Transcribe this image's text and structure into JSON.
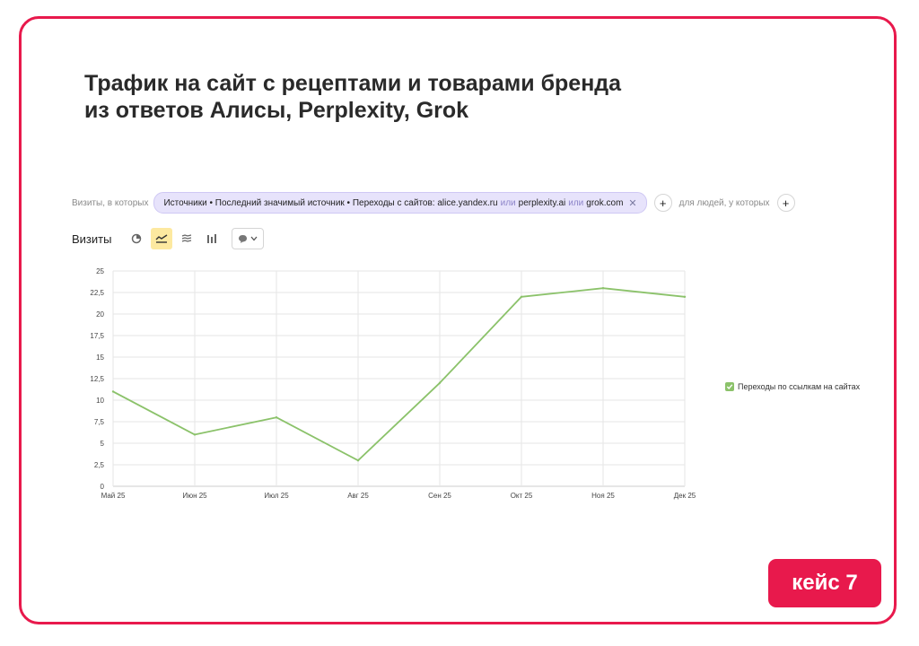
{
  "page": {
    "title_line1": "Трафик на сайт с рецептами и товарами бренда",
    "title_line2": "из ответов Алисы, Perplexity, Grok",
    "badge": "кейс 7",
    "accent_color": "#e8194c"
  },
  "filters": {
    "visits_label": "Визиты, в которых",
    "chip_prefix": "Источники • Последний значимый источник • Переходы с сайтов:",
    "sites": [
      "alice.yandex.ru",
      "perplexity.ai",
      "grok.com"
    ],
    "or_word": "или",
    "people_label": "для людей, у которых",
    "close_icon": "close-icon",
    "add_icon": "plus-icon"
  },
  "toolbar": {
    "label": "Визиты",
    "buttons": [
      "pie-chart-icon",
      "line-chart-icon",
      "area-chart-icon",
      "bar-chart-icon"
    ],
    "active": "line-chart-icon",
    "dropdown_icon": "comment-icon"
  },
  "chart_data": {
    "type": "line",
    "x": [
      "Май 25",
      "Июн 25",
      "Июл 25",
      "Авг 25",
      "Сен 25",
      "Окт 25",
      "Ноя 25",
      "Дек 25"
    ],
    "series": [
      {
        "name": "Переходы по ссылкам на сайтах",
        "values": [
          11,
          6,
          8,
          3,
          12,
          22,
          23,
          22
        ],
        "color": "#8bc26a"
      }
    ],
    "ylim": [
      0,
      25
    ],
    "yticks": [
      "0",
      "2,5",
      "5",
      "7,5",
      "10",
      "12,5",
      "15",
      "17,5",
      "20",
      "22,5",
      "25"
    ],
    "grid": true,
    "legend_position": "right"
  }
}
